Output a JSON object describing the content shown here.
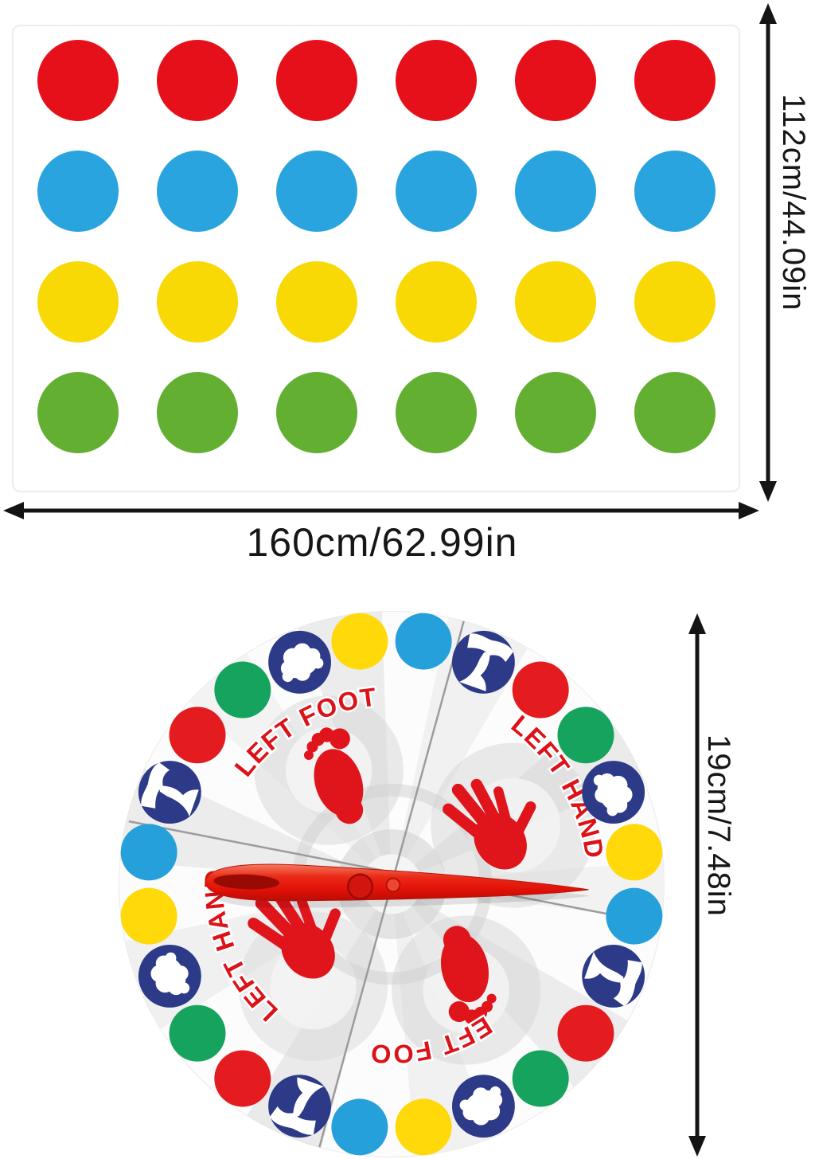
{
  "mat": {
    "columns": 6,
    "rows": [
      {
        "color": "red",
        "hex": "#e5101a"
      },
      {
        "color": "blue",
        "hex": "#2aa4de"
      },
      {
        "color": "yellow",
        "hex": "#f8d906"
      },
      {
        "color": "green",
        "hex": "#62af32"
      }
    ],
    "width_label": "160cm/62.99in",
    "height_label": "112cm/44.09in"
  },
  "spinner": {
    "size_label": "19cm/7.48in",
    "quadrants": [
      {
        "position": "top-left",
        "label": "LEFT FOOT",
        "print": "left-foot"
      },
      {
        "position": "top-right",
        "label": "LEFT HAND",
        "print": "left-hand"
      },
      {
        "position": "bottom-left",
        "label": "LEFT HAND",
        "print": "left-hand"
      },
      {
        "position": "bottom-right",
        "label": "LEFT FOOT",
        "print": "left-foot"
      }
    ],
    "ring": [
      "blue",
      "figure",
      "red",
      "green",
      "cloud",
      "yellow",
      "blue",
      "figure",
      "red",
      "green",
      "cloud",
      "yellow",
      "blue",
      "figure",
      "red",
      "green",
      "cloud",
      "yellow",
      "blue",
      "figure",
      "red",
      "green",
      "cloud",
      "yellow"
    ],
    "ring_start_angle_deg": -82.5,
    "ring_step_deg": 15,
    "colors": {
      "red": "#e41b1f",
      "green": "#16a35d",
      "yellow": "#ffd90a",
      "blue": "#25a0da",
      "badge": "#2d3a88",
      "pointer": "#e8170e",
      "label": "#dd1218",
      "print": "#e0151b"
    }
  },
  "annotations": {
    "arrow_color": "#141414"
  }
}
